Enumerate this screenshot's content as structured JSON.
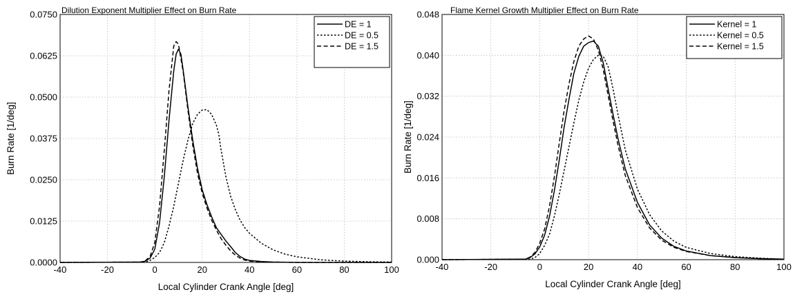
{
  "chart_data": [
    {
      "type": "line",
      "title": "Dilution Exponent Multiplier Effect on Burn Rate",
      "xlabel": "Local Cylinder Crank Angle [deg]",
      "ylabel": "Burn Rate [1/deg]",
      "xlim": [
        -40,
        100
      ],
      "ylim": [
        0,
        0.075
      ],
      "xticks": [
        -40,
        -20,
        0,
        20,
        40,
        60,
        80,
        100
      ],
      "xtick_labels": [
        "-40",
        "-20",
        "0",
        "20",
        "40",
        "60",
        "80",
        "100"
      ],
      "yticks": [
        0,
        0.0125,
        0.025,
        0.0375,
        0.05,
        0.0625,
        0.075
      ],
      "ytick_labels": [
        "0.0000",
        "0.0125",
        "0.0250",
        "0.0375",
        "0.0500",
        "0.0625",
        "0.0750"
      ],
      "grid": true,
      "legend_position": "top-right",
      "series": [
        {
          "name": "DE = 1",
          "dash": "solid",
          "x": [
            -40,
            -6,
            -4,
            -2,
            0,
            2,
            4,
            6,
            8,
            9,
            10,
            11,
            12,
            14,
            16,
            18,
            20,
            22,
            24,
            26,
            28,
            30,
            32,
            34,
            36,
            38,
            40,
            45,
            50,
            60,
            80,
            100
          ],
          "y": [
            0,
            0.0001,
            0.0004,
            0.0013,
            0.004,
            0.012,
            0.026,
            0.043,
            0.058,
            0.063,
            0.0645,
            0.063,
            0.058,
            0.047,
            0.037,
            0.0285,
            0.022,
            0.0175,
            0.0138,
            0.0105,
            0.0085,
            0.0065,
            0.0048,
            0.003,
            0.0018,
            0.001,
            0.0006,
            0.0003,
            0.0001,
            0,
            0,
            0
          ]
        },
        {
          "name": "DE = 0.5",
          "dash": "dotted",
          "x": [
            -40,
            -4,
            -2,
            0,
            2,
            4,
            6,
            8,
            10,
            12,
            14,
            16,
            18,
            20,
            22,
            24,
            26,
            27,
            28,
            30,
            32,
            34,
            36,
            38,
            40,
            45,
            50,
            55,
            60,
            70,
            80,
            90,
            100
          ],
          "y": [
            0,
            0.0001,
            0.0006,
            0.0015,
            0.003,
            0.006,
            0.011,
            0.017,
            0.024,
            0.031,
            0.037,
            0.042,
            0.0448,
            0.0461,
            0.0462,
            0.0448,
            0.0415,
            0.0388,
            0.034,
            0.026,
            0.02,
            0.016,
            0.0128,
            0.0105,
            0.0088,
            0.0058,
            0.0038,
            0.0025,
            0.0017,
            0.0008,
            0.0004,
            0.0002,
            0.0001
          ]
        },
        {
          "name": "DE = 1.5",
          "dash": "dashed",
          "x": [
            -40,
            -6,
            -4,
            -2,
            0,
            2,
            4,
            6,
            8,
            9,
            10,
            12,
            14,
            16,
            18,
            20,
            22,
            24,
            26,
            28,
            30,
            32,
            34,
            36,
            38,
            40,
            45,
            50,
            60,
            80,
            100
          ],
          "y": [
            0,
            0.0001,
            0.0005,
            0.0018,
            0.006,
            0.017,
            0.034,
            0.052,
            0.0655,
            0.0668,
            0.066,
            0.0575,
            0.046,
            0.0355,
            0.027,
            0.021,
            0.0165,
            0.0128,
            0.0098,
            0.0072,
            0.0052,
            0.0035,
            0.0022,
            0.0013,
            0.0007,
            0.0004,
            0.0002,
            0.0001,
            0,
            0,
            0
          ]
        }
      ]
    },
    {
      "type": "line",
      "title": "Flame Kernel Growth Multiplier Effect on Burn Rate",
      "xlabel": "Local Cylinder Crank Angle [deg]",
      "ylabel": "Burn Rate [1/deg]",
      "xlim": [
        -40,
        100
      ],
      "ylim": [
        0,
        0.048
      ],
      "xticks": [
        -40,
        -20,
        0,
        20,
        40,
        60,
        80,
        100
      ],
      "xtick_labels": [
        "-40",
        "-20",
        "0",
        "20",
        "40",
        "60",
        "80",
        "100"
      ],
      "yticks": [
        0,
        0.008,
        0.016,
        0.024,
        0.032,
        0.04,
        0.048
      ],
      "ytick_labels": [
        "0.000",
        "0.008",
        "0.016",
        "0.024",
        "0.032",
        "0.040",
        "0.048"
      ],
      "grid": true,
      "legend_position": "top-right",
      "series": [
        {
          "name": "Kernel = 1",
          "dash": "solid",
          "x": [
            -40,
            -6,
            -4,
            -2,
            0,
            2,
            4,
            6,
            8,
            10,
            12,
            14,
            16,
            18,
            20,
            22,
            24,
            26,
            28,
            30,
            32,
            35,
            40,
            45,
            50,
            55,
            60,
            70,
            80,
            90,
            100
          ],
          "y": [
            0,
            0.0001,
            0.0004,
            0.0011,
            0.0025,
            0.0048,
            0.0085,
            0.0135,
            0.0195,
            0.026,
            0.0315,
            0.0365,
            0.0398,
            0.0418,
            0.0425,
            0.0428,
            0.0418,
            0.0385,
            0.0335,
            0.0285,
            0.0238,
            0.0178,
            0.0112,
            0.0068,
            0.0042,
            0.0026,
            0.0017,
            0.0008,
            0.0004,
            0.0002,
            0.0001
          ]
        },
        {
          "name": "Kernel = 0.5",
          "dash": "dotted",
          "x": [
            -40,
            -4,
            -2,
            0,
            2,
            4,
            6,
            8,
            10,
            12,
            14,
            16,
            18,
            20,
            22,
            24,
            26,
            28,
            30,
            32,
            35,
            40,
            45,
            50,
            55,
            60,
            70,
            80,
            90,
            100
          ],
          "y": [
            0,
            0.0001,
            0.0004,
            0.0012,
            0.0028,
            0.005,
            0.0085,
            0.0128,
            0.0175,
            0.0222,
            0.0268,
            0.0312,
            0.0348,
            0.0375,
            0.0392,
            0.04,
            0.0398,
            0.0378,
            0.0335,
            0.0285,
            0.0215,
            0.0138,
            0.0088,
            0.0056,
            0.0036,
            0.0024,
            0.0012,
            0.0006,
            0.0003,
            0.0001
          ]
        },
        {
          "name": "Kernel = 1.5",
          "dash": "dashed",
          "x": [
            -40,
            -6,
            -4,
            -2,
            0,
            2,
            4,
            6,
            8,
            10,
            12,
            14,
            16,
            18,
            20,
            22,
            24,
            26,
            28,
            30,
            32,
            35,
            40,
            45,
            50,
            55,
            60,
            70,
            80,
            90,
            100
          ],
          "y": [
            0,
            0.0001,
            0.0005,
            0.0014,
            0.0032,
            0.006,
            0.0105,
            0.0162,
            0.0228,
            0.0292,
            0.0345,
            0.0388,
            0.0418,
            0.0432,
            0.0438,
            0.0432,
            0.041,
            0.0372,
            0.0322,
            0.0272,
            0.0225,
            0.0165,
            0.0102,
            0.0062,
            0.0038,
            0.0024,
            0.0016,
            0.0008,
            0.0004,
            0.0002,
            0.0001
          ]
        }
      ]
    }
  ]
}
